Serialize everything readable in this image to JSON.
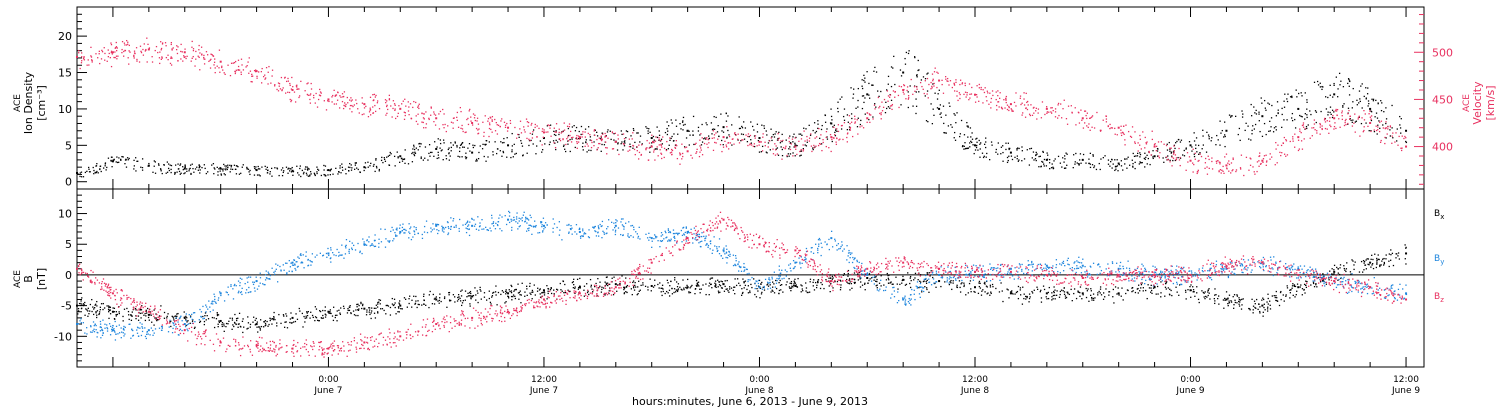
{
  "colors": {
    "black": "#000000",
    "pink": "#e8305f",
    "blue": "#1f86dd"
  },
  "chart_data": [
    {
      "type": "scatter",
      "panel": "top",
      "ylabel_left": [
        "ACE",
        "Ion Density",
        "[cm⁻³]"
      ],
      "ylabel_right": [
        "ACE",
        "Velocity",
        "[km/s]"
      ],
      "ylim_left": [
        -1,
        24
      ],
      "ylim_right": [
        355,
        548
      ],
      "yticks_left": [
        0,
        5,
        10,
        15,
        20
      ],
      "yticks_right": [
        400,
        450,
        500
      ],
      "x_domain_hours": [
        -14,
        61
      ],
      "series": [
        {
          "axis": "left",
          "color_key": "black",
          "x": [
            -14,
            -12,
            -10,
            -8,
            -6,
            -4,
            -2,
            0,
            2,
            4,
            6,
            8,
            10,
            12,
            14,
            16,
            18,
            20,
            22,
            24,
            26,
            28,
            30,
            32,
            34,
            36,
            38,
            40,
            42,
            44,
            46,
            48,
            50,
            52,
            54,
            56,
            58,
            60
          ],
          "y": [
            1.2,
            2.8,
            2.2,
            1.8,
            1.8,
            1.6,
            1.5,
            1.6,
            2.0,
            3.5,
            4.5,
            4.0,
            5.0,
            6.0,
            6.0,
            5.5,
            6.0,
            7.0,
            7.5,
            6.0,
            5.0,
            8.0,
            12.0,
            15.0,
            10.0,
            5.0,
            4.0,
            3.0,
            3.0,
            2.5,
            3.5,
            5.0,
            7.0,
            9.0,
            10.0,
            12.0,
            10.0,
            7.0
          ]
        },
        {
          "axis": "right",
          "color_key": "pink",
          "x": [
            -14,
            -12,
            -10,
            -8,
            -6,
            -4,
            -2,
            0,
            2,
            4,
            6,
            8,
            10,
            12,
            14,
            16,
            18,
            20,
            22,
            24,
            26,
            28,
            30,
            32,
            34,
            36,
            38,
            40,
            42,
            44,
            46,
            48,
            50,
            52,
            54,
            56,
            58,
            60
          ],
          "y": [
            495,
            500,
            503,
            500,
            490,
            480,
            460,
            450,
            445,
            440,
            430,
            425,
            420,
            415,
            410,
            405,
            400,
            395,
            410,
            405,
            400,
            410,
            430,
            460,
            470,
            455,
            445,
            440,
            430,
            420,
            400,
            385,
            380,
            385,
            410,
            430,
            425,
            400
          ]
        }
      ]
    },
    {
      "type": "scatter",
      "panel": "bottom",
      "ylabel_left": [
        "ACE",
        "B",
        "[nT]"
      ],
      "ylim": [
        -15,
        14
      ],
      "yticks": [
        -10,
        -5,
        0,
        5,
        10
      ],
      "legend": [
        "B",
        "B",
        "B"
      ],
      "legend_subs": [
        "x",
        "y",
        "z"
      ],
      "x_domain_hours": [
        -14,
        61
      ],
      "series": [
        {
          "color_key": "black",
          "x": [
            -14,
            -12,
            -10,
            -8,
            -6,
            -4,
            -2,
            0,
            2,
            4,
            6,
            8,
            10,
            12,
            14,
            16,
            18,
            20,
            22,
            24,
            26,
            28,
            30,
            32,
            34,
            36,
            38,
            40,
            42,
            44,
            46,
            48,
            50,
            52,
            54,
            56,
            58,
            60
          ],
          "y": [
            -5,
            -6,
            -6.5,
            -7,
            -7.5,
            -8,
            -7,
            -6,
            -5.5,
            -5,
            -4,
            -3.5,
            -3,
            -2.5,
            -2,
            -1.5,
            -1.8,
            -2,
            -1.5,
            -2,
            -1.8,
            -1,
            -0.5,
            -0.8,
            -1,
            -2,
            -3,
            -3,
            -3,
            -3,
            -2,
            -2.5,
            -4,
            -5,
            -2,
            0.5,
            2,
            3.5
          ]
        },
        {
          "color_key": "blue",
          "x": [
            -14,
            -12,
            -10,
            -8,
            -6,
            -4,
            -2,
            0,
            2,
            4,
            6,
            8,
            10,
            12,
            14,
            16,
            18,
            20,
            22,
            24,
            26,
            28,
            30,
            32,
            34,
            36,
            38,
            40,
            42,
            44,
            46,
            48,
            50,
            52,
            54,
            56,
            58,
            60
          ],
          "y": [
            -8,
            -9,
            -9,
            -8,
            -3,
            -1,
            2,
            3.5,
            5,
            7,
            8,
            8,
            9,
            8,
            7,
            8,
            6,
            7,
            4,
            -2,
            2,
            6,
            0,
            -4,
            0,
            0.5,
            1,
            1.5,
            1.5,
            1,
            0,
            0,
            1,
            2,
            1,
            -1,
            -2,
            -3
          ]
        },
        {
          "color_key": "pink",
          "x": [
            -14,
            -12,
            -10,
            -8,
            -6,
            -4,
            -2,
            0,
            2,
            4,
            6,
            8,
            10,
            12,
            14,
            16,
            18,
            20,
            22,
            24,
            26,
            28,
            30,
            32,
            34,
            36,
            38,
            40,
            42,
            44,
            46,
            48,
            50,
            52,
            54,
            56,
            58,
            60
          ],
          "y": [
            1,
            -3,
            -6,
            -9,
            -11,
            -11.5,
            -12,
            -12,
            -11,
            -10,
            -8,
            -7,
            -6,
            -4,
            -3,
            -2,
            2,
            6,
            9,
            5,
            4,
            -1,
            1,
            2,
            1,
            0.5,
            0.5,
            0,
            -0.5,
            0,
            0,
            0,
            1.5,
            2,
            0,
            -1,
            -2,
            -4
          ]
        }
      ]
    }
  ],
  "x_axis": {
    "ticks": [
      {
        "hour": 0,
        "time": "0:00",
        "day": "June 7"
      },
      {
        "hour": 12,
        "time": "12:00",
        "day": "June 7"
      },
      {
        "hour": 24,
        "time": "0:00",
        "day": "June 8"
      },
      {
        "hour": 36,
        "time": "12:00",
        "day": "June 8"
      },
      {
        "hour": 48,
        "time": "0:00",
        "day": "June 9"
      },
      {
        "hour": 60,
        "time": "12:00",
        "day": "June 9"
      }
    ],
    "caption": "hours:minutes, June  6, 2013 - June  9, 2013"
  }
}
